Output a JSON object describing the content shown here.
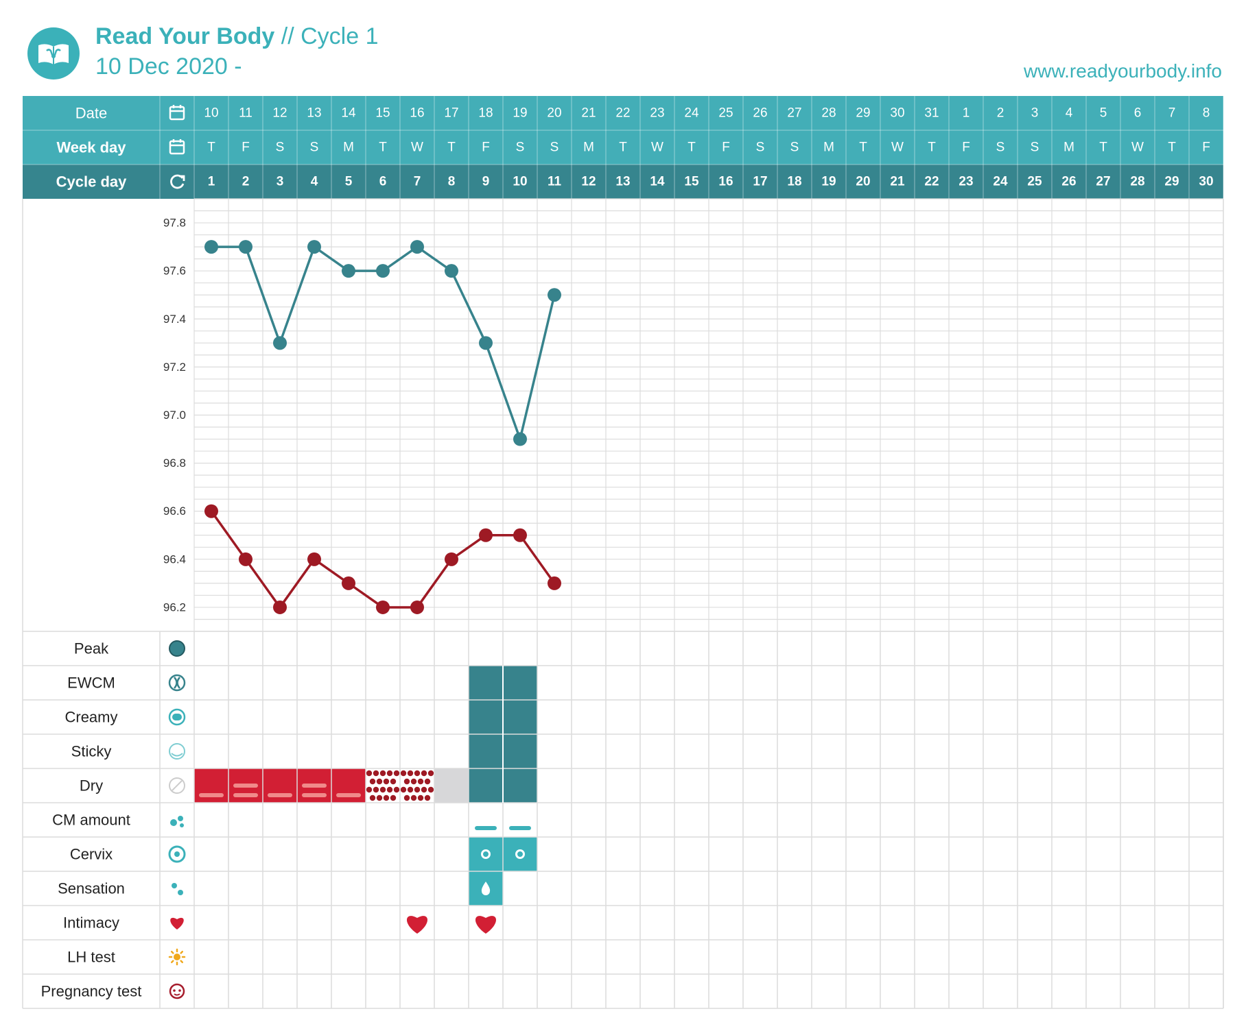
{
  "header": {
    "app_name": "Read Your Body",
    "separator_cycle": " // Cycle 1",
    "start_date": "10 Dec 2020 -",
    "website": "www.readyourbody.info",
    "logo_icon": "book-uterus-icon"
  },
  "colors": {
    "teal": "#3bb1b9",
    "teal_dark": "#37838c",
    "teal_header": "#43aeb7",
    "teal_header_dark": "#36858e",
    "red": "#d21f34",
    "dark_red": "#9e1a24",
    "gray_cell": "#d7d7d9",
    "grid": "#dcdcdc",
    "lh_icon": "#f0a81c",
    "preg_icon": "#a61c2c"
  },
  "grid": {
    "row_labels": {
      "date": "Date",
      "week_day": "Week day",
      "cycle_day": "Cycle day"
    },
    "dates": [
      "10",
      "11",
      "12",
      "13",
      "14",
      "15",
      "16",
      "17",
      "18",
      "19",
      "20",
      "21",
      "22",
      "23",
      "24",
      "25",
      "26",
      "27",
      "28",
      "29",
      "30",
      "31",
      "1",
      "2",
      "3",
      "4",
      "5",
      "6",
      "7",
      "8"
    ],
    "week_days": [
      "T",
      "F",
      "S",
      "S",
      "M",
      "T",
      "W",
      "T",
      "F",
      "S",
      "S",
      "M",
      "T",
      "W",
      "T",
      "F",
      "S",
      "S",
      "M",
      "T",
      "W",
      "T",
      "F",
      "S",
      "S",
      "M",
      "T",
      "W",
      "T",
      "F"
    ],
    "cycle_days": [
      "1",
      "2",
      "3",
      "4",
      "5",
      "6",
      "7",
      "8",
      "9",
      "10",
      "11",
      "12",
      "13",
      "14",
      "15",
      "16",
      "17",
      "18",
      "19",
      "20",
      "21",
      "22",
      "23",
      "24",
      "25",
      "26",
      "27",
      "28",
      "29",
      "30"
    ]
  },
  "observations": [
    {
      "label": "Peak",
      "icon": "peak-circle-icon"
    },
    {
      "label": "EWCM",
      "icon": "ewcm-icon"
    },
    {
      "label": "Creamy",
      "icon": "creamy-icon"
    },
    {
      "label": "Sticky",
      "icon": "sticky-icon"
    },
    {
      "label": "Dry",
      "icon": "dry-slash-icon"
    },
    {
      "label": "CM amount",
      "icon": "droplets-icon"
    },
    {
      "label": "Cervix",
      "icon": "cervix-ring-icon"
    },
    {
      "label": "Sensation",
      "icon": "sensation-drops-icon"
    },
    {
      "label": "Intimacy",
      "icon": "heart-icon"
    },
    {
      "label": "LH test",
      "icon": "sun-icon"
    },
    {
      "label": "Pregnancy test",
      "icon": "baby-face-icon"
    }
  ],
  "chart_data": {
    "type": "line",
    "ylim": [
      96.1,
      97.9
    ],
    "yticks": [
      97.8,
      97.6,
      97.4,
      97.2,
      97.0,
      96.8,
      96.6,
      96.4,
      96.2
    ],
    "x": [
      1,
      2,
      3,
      4,
      5,
      6,
      7,
      8,
      9,
      10,
      11
    ],
    "series": [
      {
        "color": "#37838c",
        "values": [
          97.7,
          97.7,
          97.3,
          97.7,
          97.6,
          97.6,
          97.7,
          97.6,
          97.3,
          96.9,
          97.5
        ]
      },
      {
        "color": "#9e1a24",
        "values": [
          96.6,
          96.4,
          96.2,
          96.4,
          96.3,
          96.2,
          96.2,
          96.4,
          96.5,
          96.5,
          96.3
        ]
      }
    ],
    "markings": {
      "bleeding": [
        {
          "day": 1,
          "style": "red-dashes"
        },
        {
          "day": 2,
          "style": "red-dashes"
        },
        {
          "day": 3,
          "style": "red-dashes"
        },
        {
          "day": 4,
          "style": "red-dashes"
        },
        {
          "day": 5,
          "style": "red-dashes"
        },
        {
          "day": 6,
          "style": "dotted"
        },
        {
          "day": 7,
          "style": "dotted"
        },
        {
          "day": 8,
          "style": "gray"
        }
      ],
      "mucus_bars": [
        9,
        10
      ],
      "cm_amount": [
        9,
        10
      ],
      "cervix": [
        9,
        10
      ],
      "sensation": [
        9
      ],
      "intimacy": [
        7,
        9
      ]
    }
  }
}
